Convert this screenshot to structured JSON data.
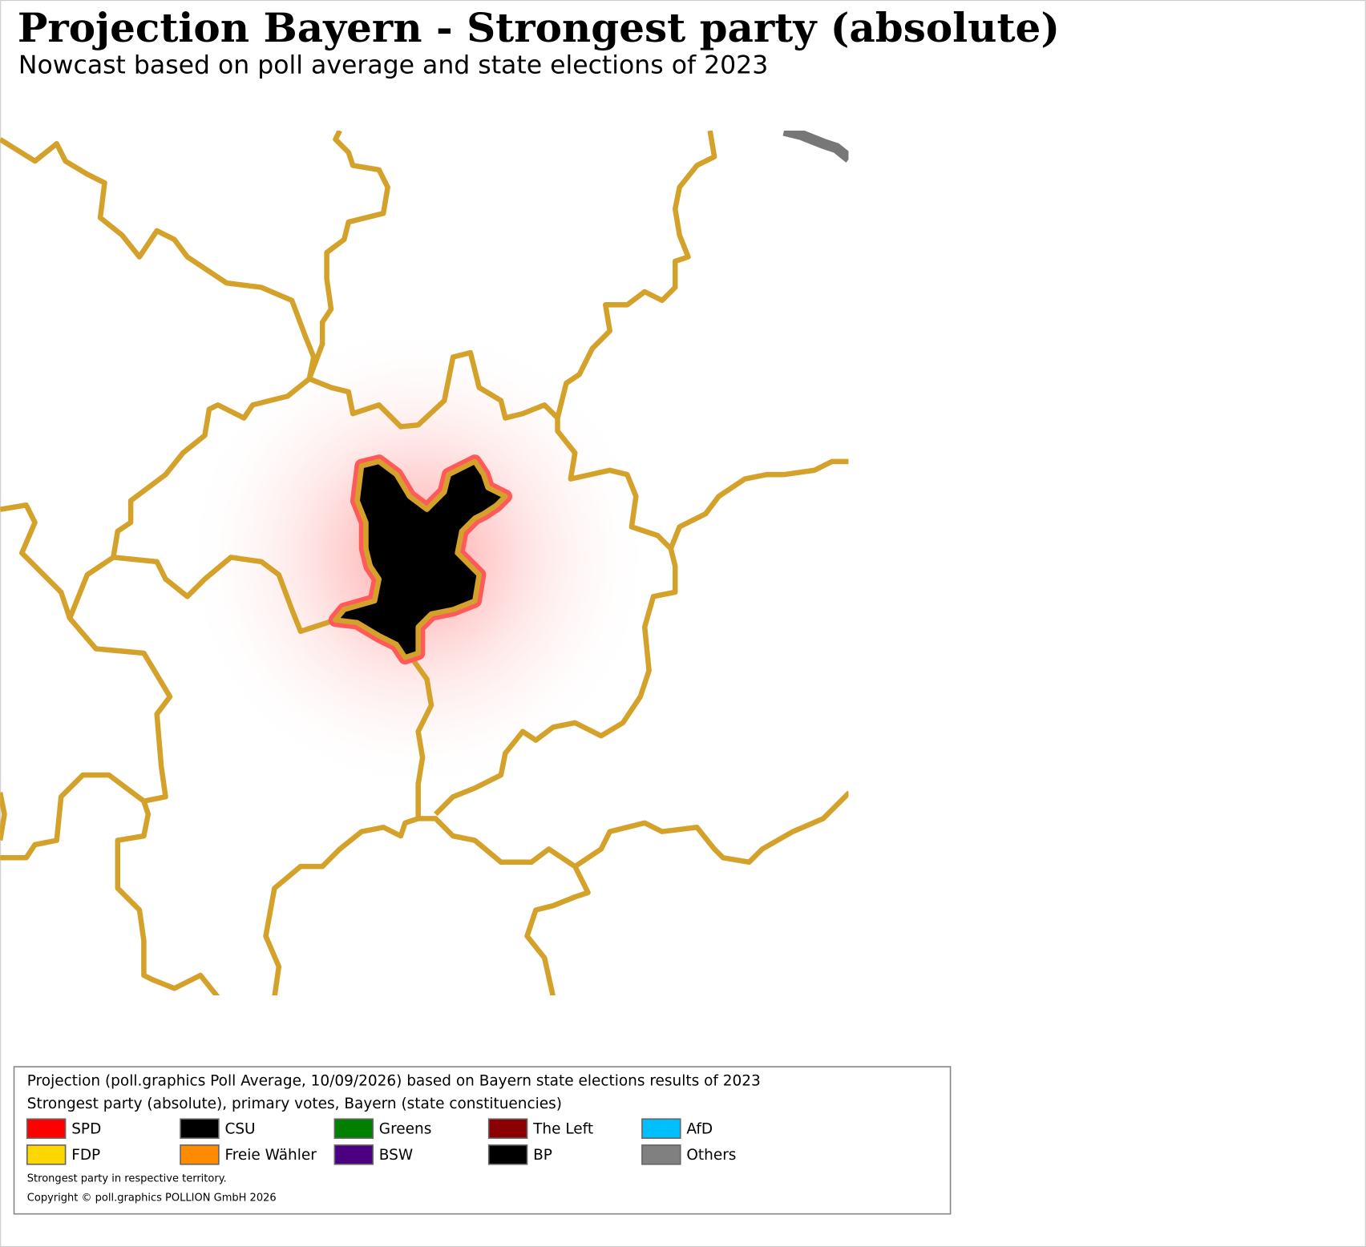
{
  "header": {
    "title": "Projection Bayern - Strongest party (absolute)",
    "subtitle": "Nowcast based on poll average and state elections of 2023"
  },
  "legend": {
    "lines": [
      "Projection (poll.graphics Poll Average, 10/09/2026) based on Bayern state elections results of 2023",
      "Strongest party (absolute), primary votes, Bayern (state constituencies)"
    ],
    "entries": [
      {
        "name": "SPD",
        "color": "#ff0000"
      },
      {
        "name": "CSU",
        "color": "#000000"
      },
      {
        "name": "Greens",
        "color": "#008000"
      },
      {
        "name": "The Left",
        "color": "#8b0000"
      },
      {
        "name": "AfD",
        "color": "#00bfff"
      },
      {
        "name": "FDP",
        "color": "#ffd700"
      },
      {
        "name": "Freie Wähler",
        "color": "#ff8c00"
      },
      {
        "name": "BSW",
        "color": "#4b0082"
      },
      {
        "name": "BP",
        "color": "#000000"
      },
      {
        "name": "Others",
        "color": "#808080"
      }
    ],
    "notes": [
      "Strongest party in respective territory.",
      "Copyright © poll.graphics POLLION GmbH 2026"
    ]
  }
}
